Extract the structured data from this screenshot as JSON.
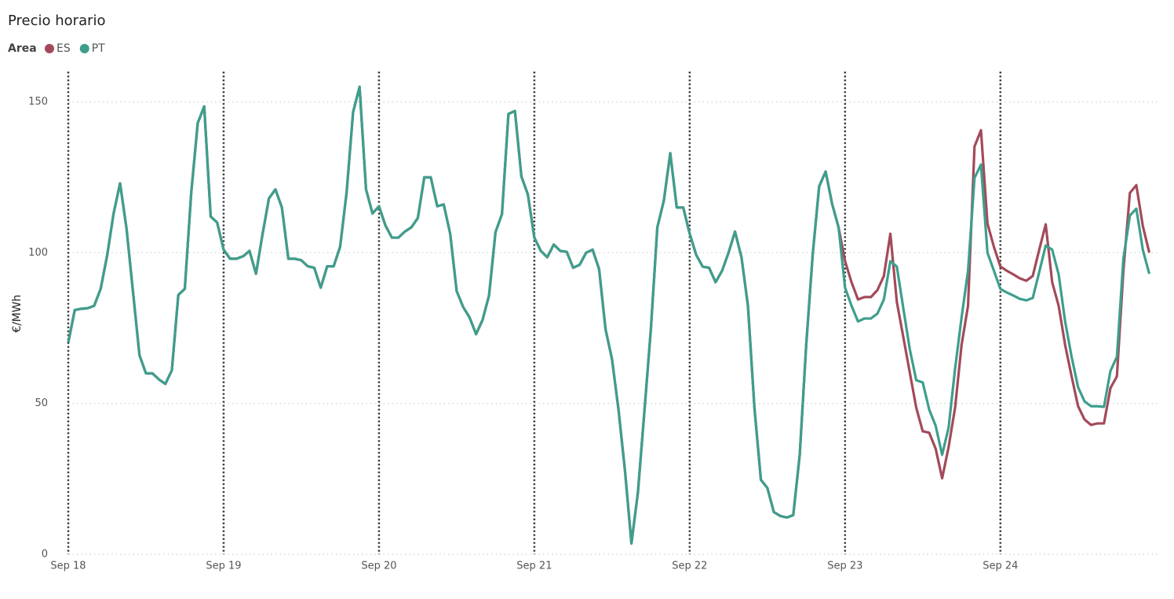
{
  "chart_data": {
    "type": "line",
    "title": "Precio horario",
    "legend_title": "Area",
    "y_label": "€/MWh",
    "x": [
      0,
      1,
      2,
      3,
      4,
      5,
      6,
      7,
      8,
      9,
      10,
      11,
      12,
      13,
      14,
      15,
      16,
      17,
      18,
      19,
      20,
      21,
      22,
      23,
      24,
      25,
      26,
      27,
      28,
      29,
      30,
      31,
      32,
      33,
      34,
      35,
      36,
      37,
      38,
      39,
      40,
      41,
      42,
      43,
      44,
      45,
      46,
      47,
      48,
      49,
      50,
      51,
      52,
      53,
      54,
      55,
      56,
      57,
      58,
      59,
      60,
      61,
      62,
      63,
      64,
      65,
      66,
      67,
      68,
      69,
      70,
      71,
      72,
      73,
      74,
      75,
      76,
      77,
      78,
      79,
      80,
      81,
      82,
      83,
      84,
      85,
      86,
      87,
      88,
      89,
      90,
      91,
      92,
      93,
      94,
      95,
      96,
      97,
      98,
      99,
      100,
      101,
      102,
      103,
      104,
      105,
      106,
      107,
      108,
      109,
      110,
      111,
      112,
      113,
      114,
      115,
      116,
      117,
      118,
      119,
      120,
      121,
      122,
      123,
      124,
      125,
      126,
      127,
      128,
      129,
      130,
      131,
      132,
      133,
      134,
      135,
      136,
      137,
      138,
      139,
      140,
      141,
      142,
      143,
      144,
      145,
      146,
      147,
      148,
      149,
      150,
      151,
      152,
      153,
      154,
      155,
      156,
      157,
      158,
      159,
      160,
      161,
      162,
      163,
      164,
      165,
      166,
      167
    ],
    "xlim": [
      0,
      169
    ],
    "xticks": [
      {
        "value": 0,
        "label": "Sep 18"
      },
      {
        "value": 24,
        "label": "Sep 19"
      },
      {
        "value": 48,
        "label": "Sep 20"
      },
      {
        "value": 72,
        "label": "Sep 21"
      },
      {
        "value": 96,
        "label": "Sep 22"
      },
      {
        "value": 120,
        "label": "Sep 23"
      },
      {
        "value": 144,
        "label": "Sep 24"
      }
    ],
    "ylim": [
      0,
      160
    ],
    "yticks": [
      0,
      50,
      100,
      150
    ],
    "grid": true,
    "series": [
      {
        "name": "ES",
        "color": "#a34a5a",
        "values": [
          70.2,
          81,
          81.4,
          81.6,
          82.4,
          88,
          99,
          113,
          123,
          108,
          87,
          66,
          60,
          60,
          58,
          56.5,
          61,
          86,
          88,
          120,
          143,
          148.5,
          112,
          110,
          101,
          98,
          98,
          98.8,
          100.6,
          93,
          106,
          118,
          121,
          115,
          98,
          98,
          97.5,
          95.5,
          95,
          88.4,
          95.5,
          95.5,
          102,
          120,
          146.6,
          155,
          121,
          113,
          115.4,
          109,
          105,
          105,
          107,
          108.4,
          111.5,
          125,
          125,
          115.4,
          116,
          106.3,
          87.3,
          82,
          78.5,
          73,
          77.7,
          85.8,
          106.8,
          112.8,
          146,
          147,
          125.3,
          119.3,
          105,
          100.6,
          98.5,
          102.7,
          100.6,
          100.3,
          95,
          96,
          100,
          101,
          94.6,
          74.6,
          64.7,
          48,
          27.8,
          3.6,
          20.5,
          47.3,
          74.6,
          108.4,
          117.2,
          133,
          115,
          115,
          106.3,
          99.3,
          95.4,
          95,
          90.2,
          94,
          100,
          107,
          98.5,
          82.4,
          48.6,
          24.7,
          22,
          14,
          12.7,
          12.2,
          13,
          33,
          69.4,
          99.3,
          122,
          126.9,
          116.2,
          108.4,
          97.2,
          90.2,
          84.5,
          85.3,
          85.3,
          87.6,
          92.3,
          106.3,
          83.7,
          72,
          60.3,
          48.6,
          40.8,
          40.3,
          35,
          25.2,
          35.6,
          48.6,
          69.4,
          82.4,
          135.2,
          140.6,
          109.7,
          101.9,
          95.4,
          94,
          92.8,
          91.5,
          90.7,
          92.3,
          101,
          109.4,
          90.2,
          82.4,
          69.4,
          59,
          49.1,
          44.7,
          42.9,
          43.4,
          43.4,
          55.1,
          59,
          94,
          119.8,
          122.4,
          108.9,
          100
        ]
      },
      {
        "name": "PT",
        "color": "#3d9e8c",
        "values": [
          70.2,
          81,
          81.4,
          81.6,
          82.4,
          88,
          99,
          113,
          123,
          108,
          87,
          66,
          60,
          60,
          58,
          56.5,
          61,
          86,
          88,
          120,
          143,
          148.5,
          112,
          110,
          101,
          98,
          98,
          98.8,
          100.6,
          93,
          106,
          118,
          121,
          115,
          98,
          98,
          97.5,
          95.5,
          95,
          88.4,
          95.5,
          95.5,
          102,
          120,
          146.6,
          155,
          121,
          113,
          115.4,
          109,
          105,
          105,
          107,
          108.4,
          111.5,
          125,
          125,
          115.4,
          116,
          106.3,
          87.3,
          82,
          78.5,
          73,
          77.7,
          85.8,
          106.8,
          112.8,
          146,
          147,
          125.3,
          119.3,
          105,
          100.6,
          98.5,
          102.7,
          100.6,
          100.3,
          95,
          96,
          100,
          101,
          94.6,
          74.6,
          64.7,
          48,
          27.8,
          3.6,
          20.5,
          47.3,
          74.6,
          108.4,
          117.2,
          133,
          115,
          115,
          106.3,
          99.3,
          95.4,
          95,
          90.2,
          94,
          100,
          107,
          98.5,
          82.4,
          48.6,
          24.7,
          22,
          14,
          12.7,
          12.2,
          13,
          33,
          69.4,
          99.3,
          122,
          126.9,
          116.2,
          108.4,
          88.4,
          82.4,
          77.2,
          78.2,
          78.2,
          79.8,
          84.5,
          97.2,
          95.4,
          81.6,
          68,
          57.7,
          57,
          48,
          42.6,
          33,
          42,
          61.6,
          78.5,
          94,
          124.8,
          129.2,
          100,
          94,
          88,
          86.8,
          85.8,
          84.7,
          84.2,
          85,
          93.6,
          102.4,
          101,
          92.8,
          77.2,
          65.5,
          55.4,
          50.7,
          49.1,
          49.1,
          48.9,
          60.8,
          65.5,
          98,
          112.3,
          114.6,
          101,
          93
        ]
      }
    ]
  }
}
